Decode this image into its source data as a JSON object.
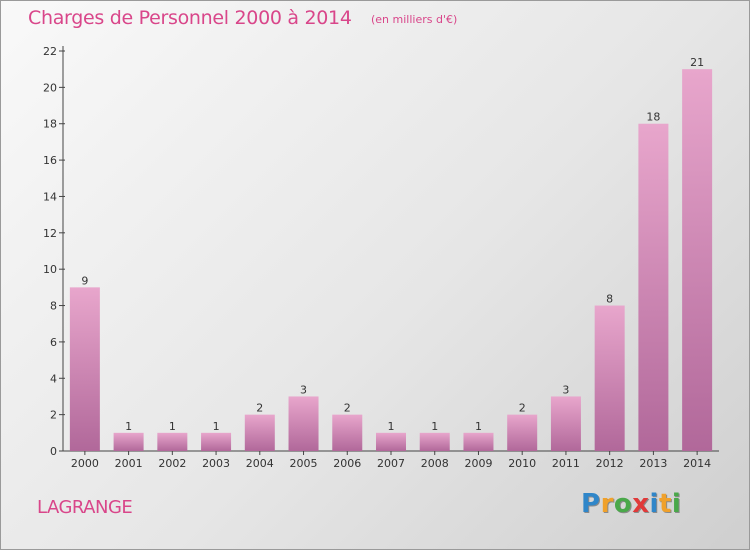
{
  "header": {
    "title": "Charges de Personnel 2000 à 2014",
    "subtitle": "(en milliers d'€)"
  },
  "footer": {
    "commune": "LAGRANGE",
    "logo_letters": [
      "P",
      "r",
      "o",
      "x",
      "i",
      "t",
      "i"
    ],
    "logo_colors": [
      "#2f86c9",
      "#f0a12b",
      "#4aa84a",
      "#e03a3a",
      "#2f86c9",
      "#f0a12b",
      "#4aa84a"
    ]
  },
  "chart_data": {
    "type": "bar",
    "title": "Charges de Personnel 2000 à 2014",
    "subtitle": "(en milliers d'€)",
    "categories": [
      "2000",
      "2001",
      "2002",
      "2003",
      "2004",
      "2005",
      "2006",
      "2007",
      "2008",
      "2009",
      "2010",
      "2011",
      "2012",
      "2013",
      "2014"
    ],
    "values": [
      9,
      1,
      1,
      1,
      2,
      3,
      2,
      1,
      1,
      1,
      2,
      3,
      8,
      18,
      21
    ],
    "ylim": [
      0,
      22
    ],
    "yticks": [
      0,
      2,
      4,
      6,
      8,
      10,
      12,
      14,
      16,
      18,
      20,
      22
    ],
    "grid": false,
    "colors": {
      "bar_top": "#e8a6cc",
      "bar_bottom": "#b1689a",
      "axis": "#444444",
      "text": "#333333"
    }
  }
}
